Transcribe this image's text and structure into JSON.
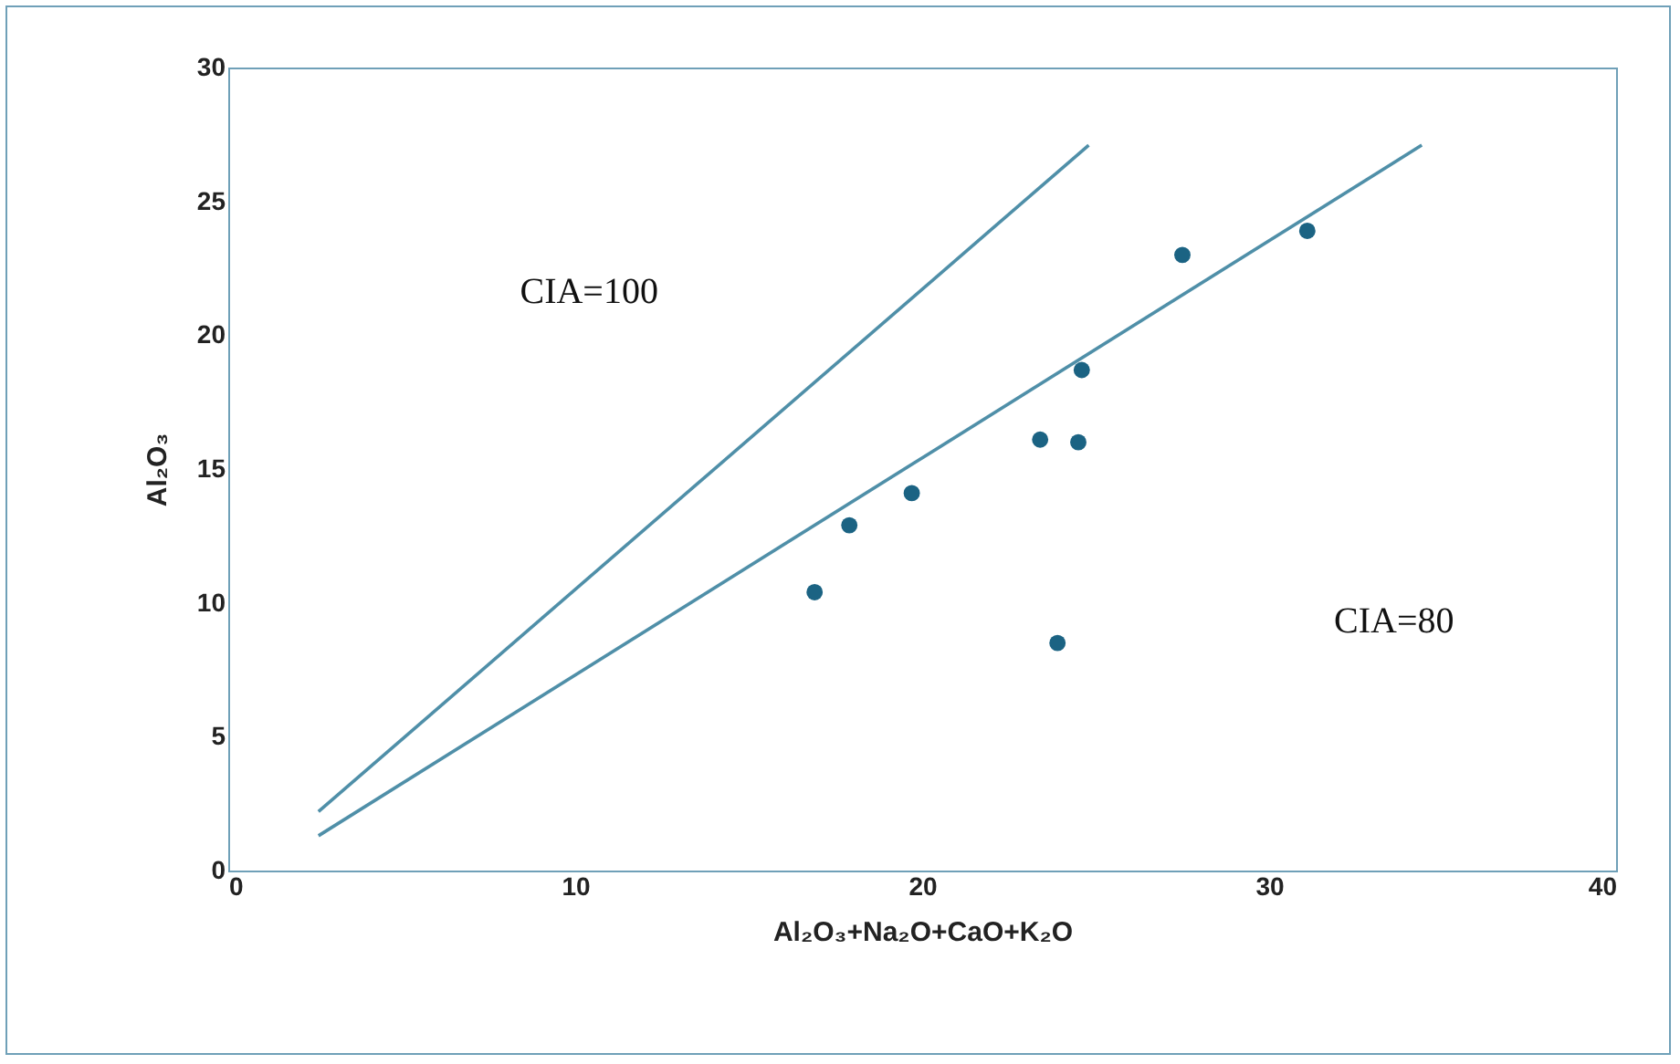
{
  "chart_data": {
    "type": "scatter",
    "xlabel": "Al₂O₃+Na₂O+CaO+K₂O",
    "ylabel": "Al₂O₃",
    "xlim": [
      0,
      40
    ],
    "xticks": [
      0,
      10,
      20,
      30,
      40
    ],
    "ylim": [
      0,
      30
    ],
    "yticks": [
      0,
      5,
      10,
      15,
      20,
      25,
      30
    ],
    "grid": false,
    "series": [
      {
        "marker": "circle",
        "color": "#1b6383",
        "x": [
          16.9,
          17.9,
          19.7,
          23.4,
          23.9,
          24.5,
          24.6,
          27.5,
          31.1
        ],
        "values": [
          10.4,
          12.9,
          14.1,
          16.1,
          8.5,
          16.0,
          18.7,
          23.0,
          23.9
        ]
      },
      {
        "type": "line",
        "color": "#4f8fa8",
        "x": [
          2.6,
          24.8
        ],
        "values": [
          2.2,
          27.1
        ]
      },
      {
        "type": "line",
        "color": "#4f8fa8",
        "x": [
          2.6,
          34.4
        ],
        "values": [
          1.3,
          27.1
        ]
      }
    ],
    "annotations": [
      "CIA=100",
      "CIA=80"
    ]
  }
}
